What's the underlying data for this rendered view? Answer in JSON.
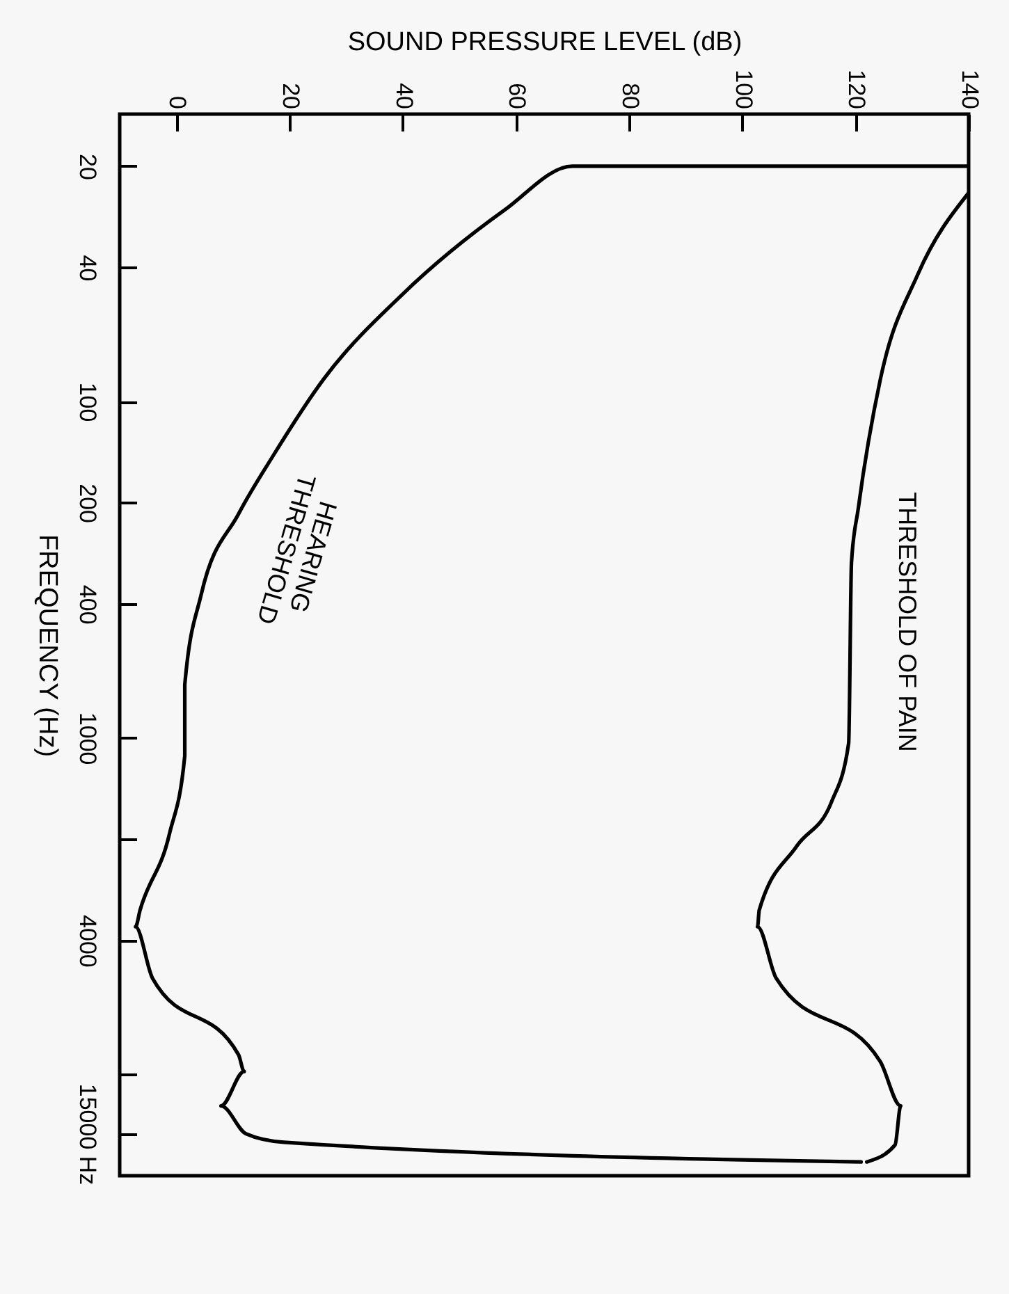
{
  "chart_data": {
    "type": "line",
    "xlabel": "SOUND PRESSURE LEVEL (dB)",
    "ylabel": "FREQUENCY (Hz)",
    "log": "y",
    "grid": false,
    "xlim": [
      -10,
      140
    ],
    "xticks": [
      0,
      20,
      40,
      60,
      80,
      100,
      120,
      140
    ],
    "ylim": [
      20000,
      14
    ],
    "yticks": [
      20,
      40,
      100,
      200,
      400,
      1000,
      {
        "value": 2000,
        "label": null
      },
      4000,
      {
        "value": 10000,
        "label": null
      },
      {
        "value": 15000,
        "label": "15000 Hz"
      }
    ],
    "series": [
      {
        "color": "#000000",
        "x": [
          140,
          70,
          58,
          40,
          26,
          17,
          11,
          4.4,
          1.5,
          1.5,
          -1.2,
          -6.4,
          -7.2,
          -4.2,
          11,
          12,
          7.9,
          12.3,
          19,
          121
        ],
        "values": [
          20,
          20,
          27,
          48,
          86,
          146,
          216,
          375,
          695,
          1130,
          1925,
          3250,
          3640,
          5180,
          8740,
          9800,
          12400,
          15000,
          15900,
          18200
        ]
      },
      {
        "color": "#000000",
        "x": [
          140,
          131,
          124.4,
          120.5,
          119.3,
          118.8,
          115.8,
          109.6,
          103,
          102.7,
          106,
          124.4,
          128,
          127,
          122
        ],
        "values": [
          24,
          42,
          86,
          208,
          301,
          1037,
          1545,
          2100,
          3250,
          3640,
          5180,
          9170,
          12400,
          16200,
          18200
        ]
      }
    ],
    "annotations": [
      "HEARING\nTHRESHOLD",
      "THRESHOLD OF PAIN"
    ]
  }
}
